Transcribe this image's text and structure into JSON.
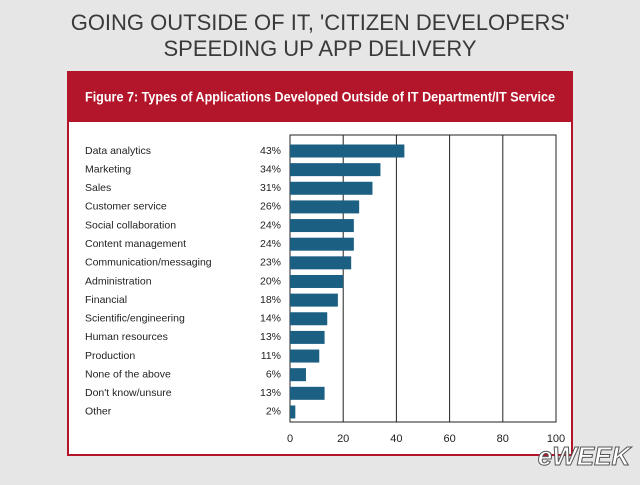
{
  "headline": [
    "GOING OUTSIDE OF IT, 'CITIZEN DEVELOPERS'",
    "SPEEDING UP APP DELIVERY"
  ],
  "logo": "eWEEK",
  "chart_data": {
    "type": "bar",
    "orientation": "horizontal",
    "title": "Figure 7: Types of Applications Developed Outside of IT Department/IT Service",
    "categories": [
      "Data analytics",
      "Marketing",
      "Sales",
      "Customer service",
      "Social collaboration",
      "Content management",
      "Communication/messaging",
      "Administration",
      "Financial",
      "Scientific/engineering",
      "Human resources",
      "Production",
      "None of the above",
      "Don't know/unsure",
      "Other"
    ],
    "values": [
      43,
      34,
      31,
      26,
      24,
      24,
      23,
      20,
      18,
      14,
      13,
      11,
      6,
      13,
      2
    ],
    "value_labels": [
      "43%",
      "34%",
      "31%",
      "26%",
      "24%",
      "24%",
      "23%",
      "20%",
      "18%",
      "14%",
      "13%",
      "11%",
      "6%",
      "13%",
      "2%"
    ],
    "color": "#1b5f82",
    "xlim": [
      0,
      100
    ],
    "xticks": [
      0,
      20,
      40,
      60,
      80,
      100
    ],
    "grid": true
  }
}
